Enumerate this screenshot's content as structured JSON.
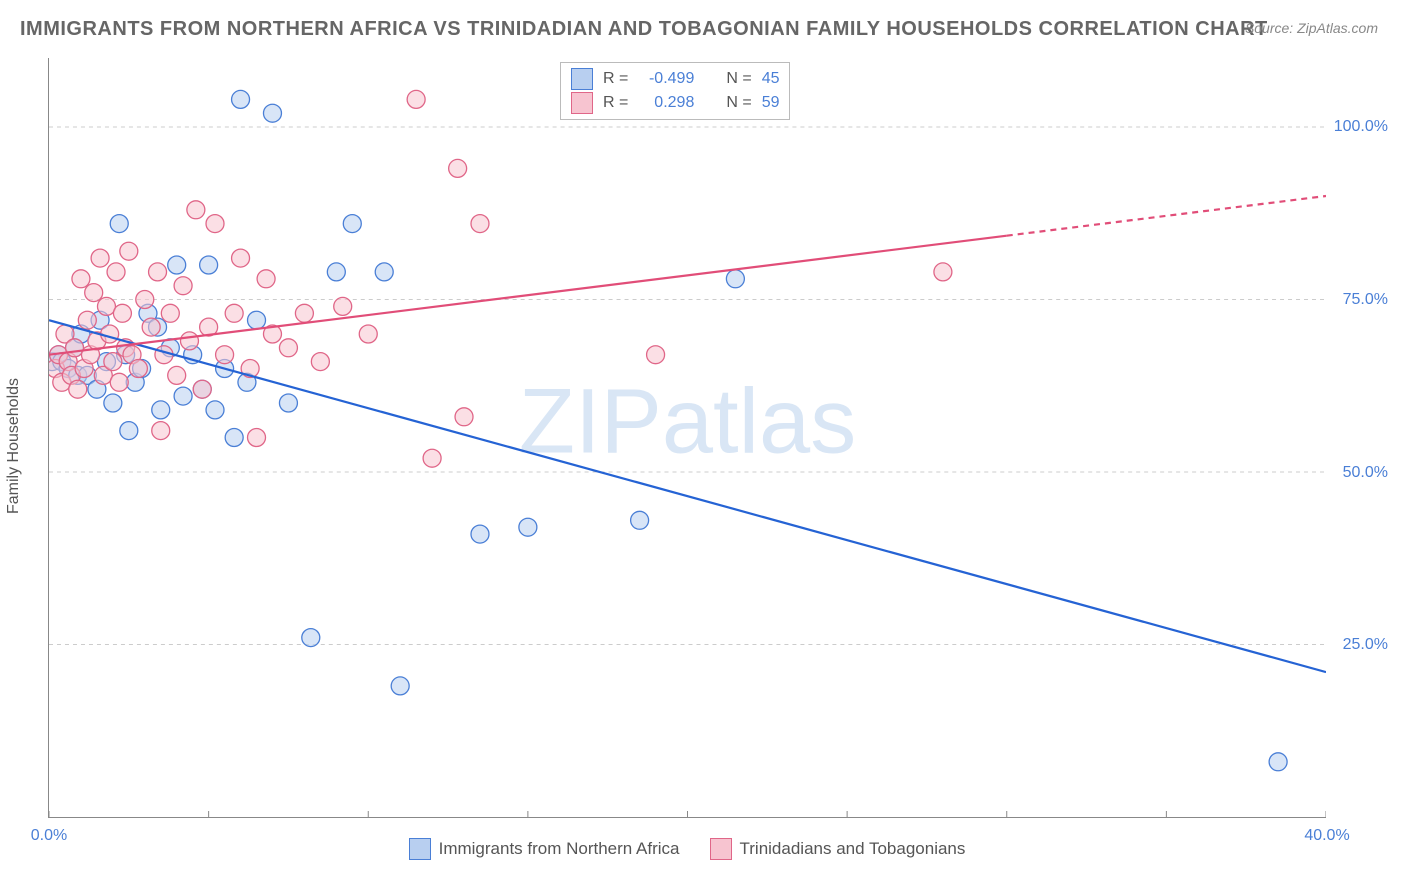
{
  "chart": {
    "title": "IMMIGRANTS FROM NORTHERN AFRICA VS TRINIDADIAN AND TOBAGONIAN FAMILY HOUSEHOLDS CORRELATION CHART",
    "source": "Source: ZipAtlas.com",
    "watermark": "ZIPatlas",
    "type": "scatter",
    "yaxis_title": "Family Households",
    "xlim": [
      0,
      40
    ],
    "ylim": [
      0,
      110
    ],
    "xticks": [
      0,
      40
    ],
    "xtick_labels": [
      "0.0%",
      "40.0%"
    ],
    "yticks": [
      25,
      50,
      75,
      100
    ],
    "ytick_labels": [
      "25.0%",
      "50.0%",
      "75.0%",
      "100.0%"
    ],
    "grid_color": "#cccccc",
    "background_color": "#ffffff",
    "axis_label_color": "#4a7fd6",
    "title_color": "#666666",
    "title_fontsize": 20,
    "label_fontsize": 16,
    "series": [
      {
        "name": "Immigrants from Northern Africa",
        "color_fill": "#b8cff0",
        "color_stroke": "#4a7fd6",
        "marker": "circle",
        "marker_radius": 9,
        "fill_opacity": 0.55,
        "R": "-0.499",
        "N": "45",
        "trend": {
          "x1": 0,
          "y1": 72,
          "x2": 40,
          "y2": 21,
          "stroke": "#2563d4",
          "width": 2.2
        },
        "points": [
          [
            0.1,
            66
          ],
          [
            0.3,
            67
          ],
          [
            0.4,
            66
          ],
          [
            0.6,
            65
          ],
          [
            0.8,
            68
          ],
          [
            0.9,
            64
          ],
          [
            1.0,
            70
          ],
          [
            1.2,
            64
          ],
          [
            1.5,
            62
          ],
          [
            1.6,
            72
          ],
          [
            1.8,
            66
          ],
          [
            2.0,
            60
          ],
          [
            2.2,
            86
          ],
          [
            2.4,
            67
          ],
          [
            2.5,
            56
          ],
          [
            2.7,
            63
          ],
          [
            2.9,
            65
          ],
          [
            3.1,
            73
          ],
          [
            3.4,
            71
          ],
          [
            3.5,
            59
          ],
          [
            3.8,
            68
          ],
          [
            4.0,
            80
          ],
          [
            4.2,
            61
          ],
          [
            4.5,
            67
          ],
          [
            4.8,
            62
          ],
          [
            5.0,
            80
          ],
          [
            5.2,
            59
          ],
          [
            5.5,
            65
          ],
          [
            5.8,
            55
          ],
          [
            6.0,
            104
          ],
          [
            6.2,
            63
          ],
          [
            6.5,
            72
          ],
          [
            7.0,
            102
          ],
          [
            7.5,
            60
          ],
          [
            8.2,
            26
          ],
          [
            9.0,
            79
          ],
          [
            9.5,
            86
          ],
          [
            10.5,
            79
          ],
          [
            11.0,
            19
          ],
          [
            13.5,
            41
          ],
          [
            15.0,
            42
          ],
          [
            18.5,
            43
          ],
          [
            21.5,
            78
          ],
          [
            38.5,
            8
          ]
        ]
      },
      {
        "name": "Trinidadians and Tobagonians",
        "color_fill": "#f7c4d0",
        "color_stroke": "#e06688",
        "marker": "circle",
        "marker_radius": 9,
        "fill_opacity": 0.55,
        "R": "0.298",
        "N": "59",
        "trend": {
          "x1": 0,
          "y1": 67,
          "x2": 40,
          "y2": 90,
          "stroke": "#e14d78",
          "width": 2.2,
          "dash_after_x": 30
        },
        "points": [
          [
            0.2,
            65
          ],
          [
            0.3,
            67
          ],
          [
            0.4,
            63
          ],
          [
            0.5,
            70
          ],
          [
            0.6,
            66
          ],
          [
            0.7,
            64
          ],
          [
            0.8,
            68
          ],
          [
            0.9,
            62
          ],
          [
            1.0,
            78
          ],
          [
            1.1,
            65
          ],
          [
            1.2,
            72
          ],
          [
            1.3,
            67
          ],
          [
            1.4,
            76
          ],
          [
            1.5,
            69
          ],
          [
            1.6,
            81
          ],
          [
            1.7,
            64
          ],
          [
            1.8,
            74
          ],
          [
            1.9,
            70
          ],
          [
            2.0,
            66
          ],
          [
            2.1,
            79
          ],
          [
            2.2,
            63
          ],
          [
            2.3,
            73
          ],
          [
            2.4,
            68
          ],
          [
            2.5,
            82
          ],
          [
            2.6,
            67
          ],
          [
            2.8,
            65
          ],
          [
            3.0,
            75
          ],
          [
            3.2,
            71
          ],
          [
            3.4,
            79
          ],
          [
            3.5,
            56
          ],
          [
            3.6,
            67
          ],
          [
            3.8,
            73
          ],
          [
            4.0,
            64
          ],
          [
            4.2,
            77
          ],
          [
            4.4,
            69
          ],
          [
            4.6,
            88
          ],
          [
            4.8,
            62
          ],
          [
            5.0,
            71
          ],
          [
            5.2,
            86
          ],
          [
            5.5,
            67
          ],
          [
            5.8,
            73
          ],
          [
            6.0,
            81
          ],
          [
            6.3,
            65
          ],
          [
            6.5,
            55
          ],
          [
            6.8,
            78
          ],
          [
            7.0,
            70
          ],
          [
            7.5,
            68
          ],
          [
            8.0,
            73
          ],
          [
            8.5,
            66
          ],
          [
            9.2,
            74
          ],
          [
            10.0,
            70
          ],
          [
            11.5,
            104
          ],
          [
            12.0,
            52
          ],
          [
            12.8,
            94
          ],
          [
            13.0,
            58
          ],
          [
            13.5,
            86
          ],
          [
            19.0,
            67
          ],
          [
            28.0,
            79
          ]
        ]
      }
    ],
    "top_legend": {
      "rows": [
        {
          "swatch_fill": "#b8cff0",
          "swatch_stroke": "#4a7fd6",
          "r_label": "R =",
          "r_val": "-0.499",
          "n_label": "N =",
          "n_val": "45"
        },
        {
          "swatch_fill": "#f7c4d0",
          "swatch_stroke": "#e06688",
          "r_label": "R =",
          "r_val": "0.298",
          "n_label": "N =",
          "n_val": "59"
        }
      ]
    },
    "bottom_legend": {
      "items": [
        {
          "swatch_fill": "#b8cff0",
          "swatch_stroke": "#4a7fd6",
          "label": "Immigrants from Northern Africa"
        },
        {
          "swatch_fill": "#f7c4d0",
          "swatch_stroke": "#e06688",
          "label": "Trinidadians and Tobagonians"
        }
      ]
    }
  }
}
